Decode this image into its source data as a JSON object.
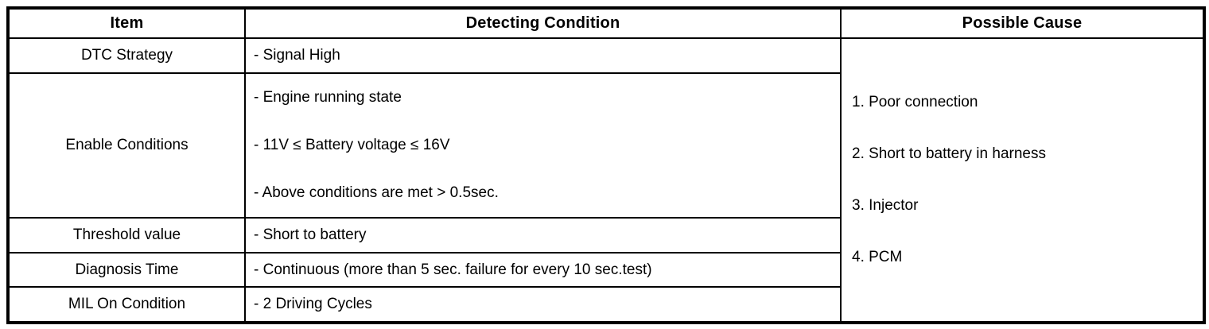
{
  "page": {
    "background_color": "#ffffff",
    "border_color": "#000000",
    "text_color": "#000000"
  },
  "table": {
    "columns": [
      {
        "label": "Item"
      },
      {
        "label": "Detecting Condition"
      },
      {
        "label": "Possible Cause"
      }
    ],
    "rows": [
      {
        "item": "DTC Strategy",
        "conditions": [
          "- Signal High"
        ]
      },
      {
        "item": "Enable Conditions",
        "conditions": [
          "- Engine running state",
          "- 11V ≤ Battery voltage ≤ 16V",
          "- Above conditions are met > 0.5sec."
        ]
      },
      {
        "item": "Threshold value",
        "conditions": [
          "- Short to battery"
        ]
      },
      {
        "item": "Diagnosis Time",
        "conditions": [
          "- Continuous (more than 5 sec. failure for every 10 sec.test)"
        ]
      },
      {
        "item": "MIL On Condition",
        "conditions": [
          "- 2 Driving Cycles"
        ]
      }
    ],
    "possible_causes": [
      "1. Poor connection",
      "2. Short to battery in harness",
      "3. Injector",
      "4. PCM"
    ]
  }
}
